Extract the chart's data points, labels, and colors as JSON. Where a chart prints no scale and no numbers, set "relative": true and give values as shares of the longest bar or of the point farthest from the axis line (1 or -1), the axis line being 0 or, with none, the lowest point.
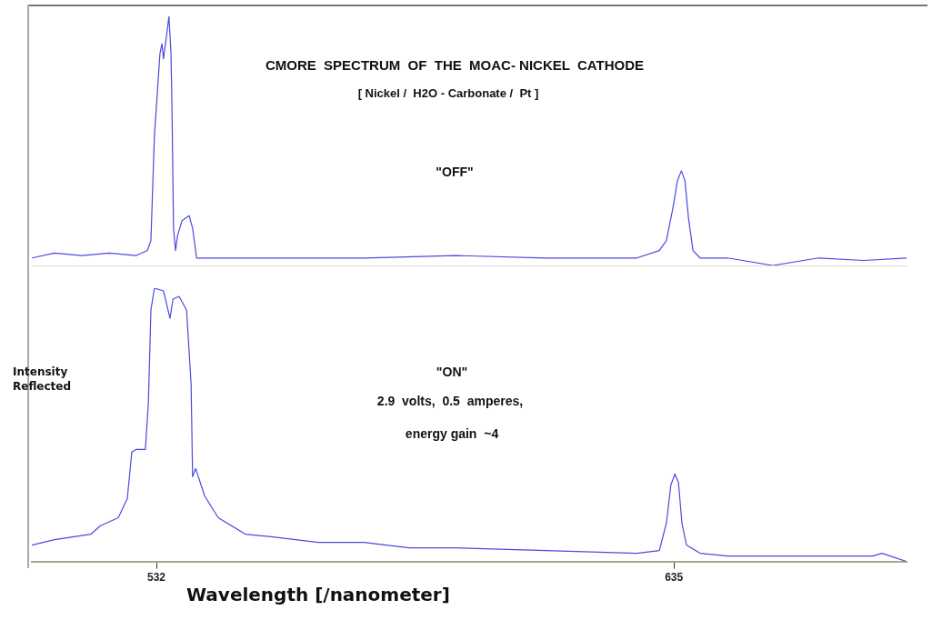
{
  "chart_data": [
    {
      "type": "line",
      "title": "CMORE  SPECTRUM  OF  THE  MOAC- NICKEL  CATHODE",
      "subtitle": "[ Nickel /  H2O - Carbonate /  Pt ]",
      "annotations": [
        "\"OFF\""
      ],
      "relative": true,
      "xlim": [
        507.2,
        681.3
      ],
      "tick_labels": false,
      "grid": false,
      "legend": false,
      "marker": "none",
      "series": [
        {
          "color": "#4a4ae0",
          "x": [
            507.2,
            511.7,
            517.2,
            522.6,
            528.0,
            530.2,
            530.9,
            531.6,
            532.2,
            532.7,
            533.1,
            533.4,
            534.0,
            534.5,
            534.9,
            535.1,
            535.4,
            535.8,
            536.2,
            537.1,
            538.5,
            539.2,
            540.0,
            544.3,
            555.2,
            573.3,
            591.4,
            609.5,
            627.6,
            632.1,
            633.5,
            634.8,
            635.7,
            636.5,
            637.2,
            637.9,
            638.8,
            640.2,
            645.7,
            654.7,
            663.8,
            672.8,
            681.3
          ],
          "values": [
            0.03,
            0.05,
            0.04,
            0.05,
            0.04,
            0.06,
            0.1,
            0.52,
            0.7,
            0.85,
            0.89,
            0.83,
            0.92,
            1,
            0.85,
            0.63,
            0.15,
            0.06,
            0.12,
            0.18,
            0.2,
            0.15,
            0.03,
            0.03,
            0.03,
            0.03,
            0.04,
            0.03,
            0.03,
            0.06,
            0.1,
            0.23,
            0.34,
            0.38,
            0.34,
            0.19,
            0.06,
            0.03,
            0.03,
            0,
            0.03,
            0.02,
            0.03
          ]
        }
      ]
    },
    {
      "type": "line",
      "xlabel": "Wavelength [/nanometer]",
      "ylabel": "Intensity Reflected",
      "annotations": [
        "\"ON\"",
        "2.9  volts,  0.5  amperes,",
        "energy gain  ~4"
      ],
      "relative": true,
      "xlim": [
        507.2,
        681.3
      ],
      "xticks": [
        532,
        635
      ],
      "grid": false,
      "legend": false,
      "marker": "none",
      "series": [
        {
          "color": "#4a4ae0",
          "x": [
            507.2,
            511.7,
            515.3,
            519.0,
            520.8,
            524.4,
            526.2,
            527.1,
            528.0,
            529.8,
            530.4,
            530.9,
            531.6,
            533.4,
            534.7,
            535.3,
            536.5,
            538.0,
            538.9,
            539.2,
            539.8,
            541.6,
            544.3,
            549.7,
            555.2,
            564.2,
            573.3,
            582.3,
            591.4,
            609.5,
            627.6,
            632.1,
            633.5,
            634.4,
            635.2,
            635.9,
            636.6,
            637.5,
            640.2,
            645.7,
            663.8,
            674.6,
            676.4,
            681.3
          ],
          "values": [
            0.06,
            0.08,
            0.09,
            0.1,
            0.13,
            0.16,
            0.23,
            0.4,
            0.41,
            0.41,
            0.58,
            0.92,
            1,
            0.99,
            0.89,
            0.96,
            0.97,
            0.92,
            0.65,
            0.31,
            0.34,
            0.24,
            0.16,
            0.1,
            0.09,
            0.07,
            0.07,
            0.05,
            0.05,
            0.04,
            0.03,
            0.04,
            0.14,
            0.28,
            0.32,
            0.29,
            0.14,
            0.06,
            0.03,
            0.02,
            0.02,
            0.02,
            0.03,
            0
          ]
        }
      ]
    }
  ]
}
